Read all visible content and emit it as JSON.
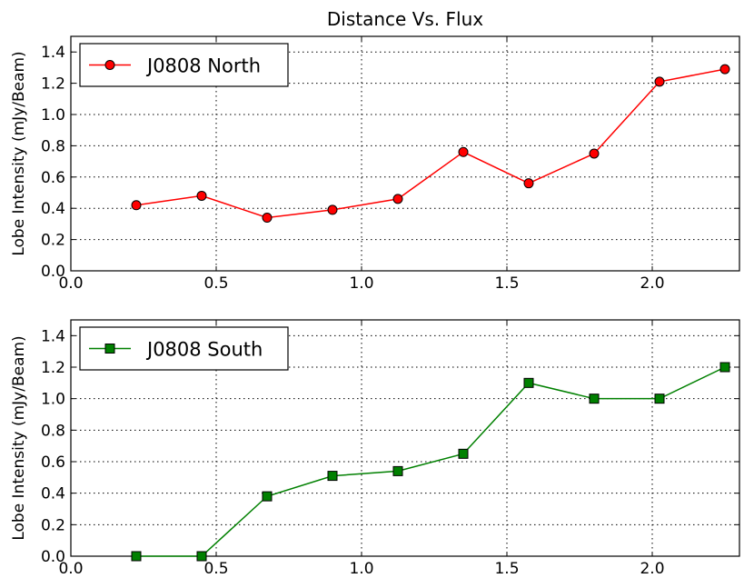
{
  "chart_data": [
    {
      "type": "line",
      "title": "Distance Vs. Flux",
      "xlabel": "",
      "ylabel": "Lobe Intensity (mJy/Beam)",
      "xlim": [
        0.0,
        2.3
      ],
      "ylim": [
        0.0,
        1.5
      ],
      "xticks": [
        "0.0",
        "0.5",
        "1.0",
        "1.5",
        "2.0"
      ],
      "yticks": [
        "0.0",
        "0.2",
        "0.4",
        "0.6",
        "0.8",
        "1.0",
        "1.2",
        "1.4"
      ],
      "grid": true,
      "legend_position": "upper-left",
      "series": [
        {
          "name": "J0808 North",
          "color": "#ff0000",
          "marker": "circle",
          "x": [
            0.225,
            0.45,
            0.675,
            0.9,
            1.125,
            1.35,
            1.575,
            1.8,
            2.025,
            2.25
          ],
          "values": [
            0.42,
            0.48,
            0.34,
            0.39,
            0.46,
            0.76,
            0.56,
            0.75,
            1.21,
            1.29
          ]
        }
      ]
    },
    {
      "type": "line",
      "title": "",
      "xlabel": "",
      "ylabel": "Lobe Intensity (mJy/Beam)",
      "xlim": [
        0.0,
        2.3
      ],
      "ylim": [
        0.0,
        1.5
      ],
      "xticks": [
        "0.0",
        "0.5",
        "1.0",
        "1.5",
        "2.0"
      ],
      "yticks": [
        "0.0",
        "0.2",
        "0.4",
        "0.6",
        "0.8",
        "1.0",
        "1.2",
        "1.4"
      ],
      "grid": true,
      "legend_position": "upper-left",
      "series": [
        {
          "name": "J0808 South",
          "color": "#008000",
          "marker": "square",
          "x": [
            0.225,
            0.45,
            0.675,
            0.9,
            1.125,
            1.35,
            1.575,
            1.8,
            2.025,
            2.25
          ],
          "values": [
            0.0,
            0.0,
            0.38,
            0.51,
            0.54,
            0.65,
            1.1,
            1.0,
            1.0,
            1.2
          ]
        }
      ]
    }
  ]
}
